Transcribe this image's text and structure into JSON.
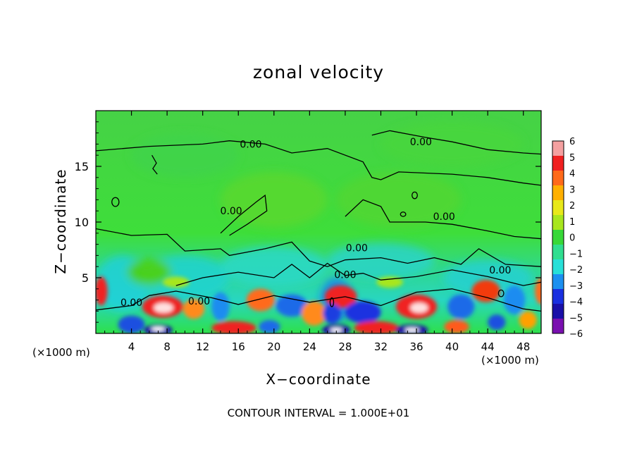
{
  "chart_data": {
    "type": "heatmap",
    "title": "zonal velocity",
    "xlabel": "X−coordinate",
    "ylabel": "Z−coordinate",
    "x_unit_label_left": "(×1000 m)",
    "x_unit_label_right": "(×1000 m)",
    "annotation": "CONTOUR INTERVAL = 1.000E+01",
    "xlim": [
      0,
      50
    ],
    "ylim": [
      0,
      20
    ],
    "x_ticks": [
      4,
      8,
      12,
      16,
      20,
      24,
      28,
      32,
      36,
      40,
      44,
      48
    ],
    "y_ticks": [
      5,
      10,
      15
    ],
    "colorbar": {
      "ticks": [
        "6",
        "5",
        "4",
        "3",
        "2",
        "1",
        "0",
        "−1",
        "−2",
        "−3",
        "−4",
        "−5",
        "−6"
      ],
      "range": [
        -6,
        6
      ]
    },
    "contour_labels": [
      {
        "text": "0.00",
        "x": 17.4,
        "y": 17.0
      },
      {
        "text": "0.00",
        "x": 36.5,
        "y": 17.2
      },
      {
        "text": "0.00",
        "x": 15.2,
        "y": 11.0
      },
      {
        "text": "0.00",
        "x": 39.1,
        "y": 10.5
      },
      {
        "text": "0.00",
        "x": 29.3,
        "y": 7.7
      },
      {
        "text": "0.00",
        "x": 28.0,
        "y": 5.3
      },
      {
        "text": "0.00",
        "x": 45.4,
        "y": 5.7
      },
      {
        "text": "0.00",
        "x": 4.0,
        "y": 2.8
      },
      {
        "text": "0.00",
        "x": 11.6,
        "y": 2.9
      }
    ]
  }
}
